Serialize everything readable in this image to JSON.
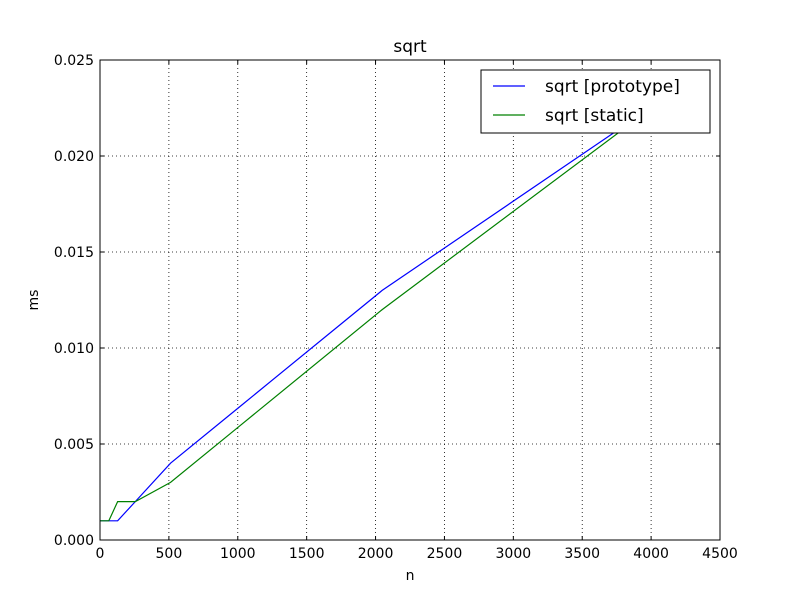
{
  "chart_data": {
    "type": "line",
    "title": "sqrt",
    "xlabel": "n",
    "ylabel": "ms",
    "xlim": [
      0,
      4500
    ],
    "ylim": [
      0,
      0.025
    ],
    "xticks": [
      0,
      500,
      1000,
      1500,
      2000,
      2500,
      3000,
      3500,
      4000,
      4500
    ],
    "yticks": [
      0.0,
      0.005,
      0.01,
      0.015,
      0.02,
      0.025
    ],
    "xtick_labels": [
      "0",
      "500",
      "1000",
      "1500",
      "2000",
      "2500",
      "3000",
      "3500",
      "4000",
      "4500"
    ],
    "ytick_labels": [
      "0.000",
      "0.005",
      "0.010",
      "0.015",
      "0.020",
      "0.025"
    ],
    "grid": true,
    "legend_position": "top-right",
    "series": [
      {
        "name": "sqrt [prototype]",
        "color": "#0000ff",
        "x": [
          0,
          64,
          128,
          256,
          512,
          1024,
          2048,
          4096
        ],
        "y": [
          0.001,
          0.001,
          0.001,
          0.002,
          0.004,
          0.007,
          0.013,
          0.023
        ]
      },
      {
        "name": "sqrt [static]",
        "color": "#008000",
        "x": [
          0,
          64,
          128,
          256,
          512,
          1024,
          2048,
          4096
        ],
        "y": [
          0.001,
          0.001,
          0.002,
          0.002,
          0.003,
          0.006,
          0.012,
          0.023
        ]
      }
    ]
  }
}
